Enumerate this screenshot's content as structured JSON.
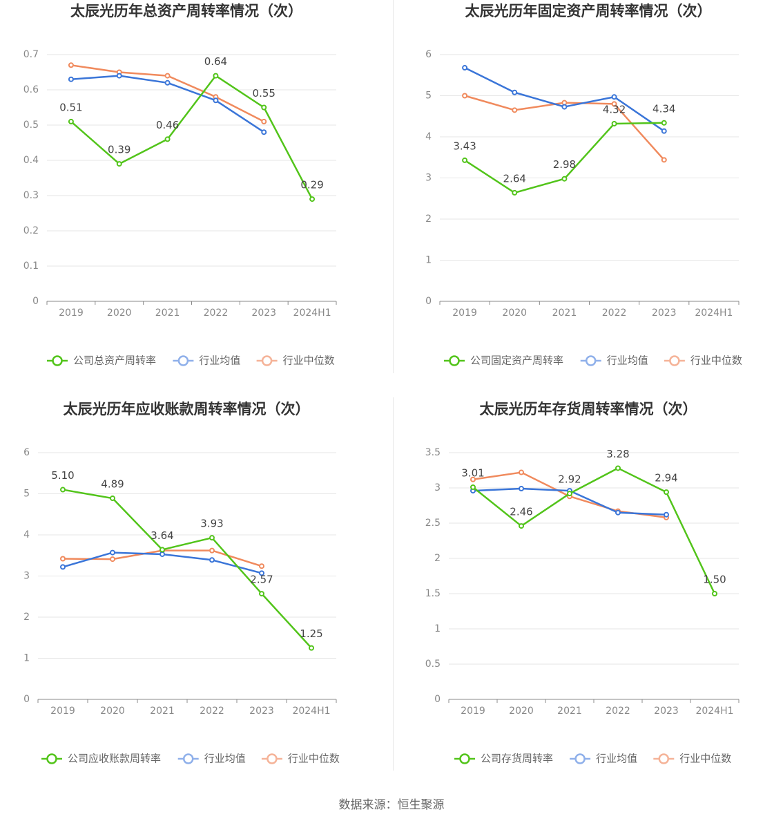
{
  "source_text": "数据来源：恒生聚源",
  "colors": {
    "company": "#52c41a",
    "avg": "#3a75d8",
    "median": "#f08a5d"
  },
  "chart_data": [
    {
      "type": "line",
      "title": "太辰光历年总资产周转率情况（次）",
      "categories": [
        "2019",
        "2020",
        "2021",
        "2022",
        "2023",
        "2024H1"
      ],
      "ylim": [
        0,
        0.7
      ],
      "yticks": [
        "0",
        "0.1",
        "0.2",
        "0.3",
        "0.4",
        "0.5",
        "0.6",
        "0.7"
      ],
      "series": [
        {
          "name": "公司总资产周转率",
          "role": "company",
          "values": [
            0.51,
            0.39,
            0.46,
            0.64,
            0.55,
            0.29
          ],
          "labels": [
            "0.51",
            "0.39",
            "0.46",
            "0.64",
            "0.55",
            "0.29"
          ]
        },
        {
          "name": "行业均值",
          "role": "avg",
          "values": [
            0.63,
            0.64,
            0.62,
            0.57,
            0.48,
            null
          ]
        },
        {
          "name": "行业中位数",
          "role": "median",
          "values": [
            0.67,
            0.65,
            0.64,
            0.58,
            0.51,
            null
          ]
        }
      ]
    },
    {
      "type": "line",
      "title": "太辰光历年固定资产周转率情况（次）",
      "categories": [
        "2019",
        "2020",
        "2021",
        "2022",
        "2023",
        "2024H1"
      ],
      "ylim": [
        0,
        6
      ],
      "yticks": [
        "0",
        "1",
        "2",
        "3",
        "4",
        "5",
        "6"
      ],
      "series": [
        {
          "name": "公司固定资产周转率",
          "role": "company",
          "values": [
            3.43,
            2.64,
            2.98,
            4.32,
            4.34,
            null
          ],
          "labels": [
            "3.43",
            "2.64",
            "2.98",
            "4.32",
            "4.34",
            ""
          ]
        },
        {
          "name": "行业均值",
          "role": "avg",
          "values": [
            5.68,
            5.08,
            4.73,
            4.97,
            4.14,
            null
          ]
        },
        {
          "name": "行业中位数",
          "role": "median",
          "values": [
            5.0,
            4.65,
            4.83,
            4.8,
            3.44,
            null
          ]
        }
      ]
    },
    {
      "type": "line",
      "title": "太辰光历年应收账款周转率情况（次）",
      "categories": [
        "2019",
        "2020",
        "2021",
        "2022",
        "2023",
        "2024H1"
      ],
      "ylim": [
        0,
        6
      ],
      "yticks": [
        "0",
        "1",
        "2",
        "3",
        "4",
        "5",
        "6"
      ],
      "series": [
        {
          "name": "公司应收账款周转率",
          "role": "company",
          "values": [
            5.1,
            4.89,
            3.64,
            3.93,
            2.57,
            1.25
          ],
          "labels": [
            "5.10",
            "4.89",
            "3.64",
            "3.93",
            "2.57",
            "1.25"
          ]
        },
        {
          "name": "行业均值",
          "role": "avg",
          "values": [
            3.22,
            3.57,
            3.53,
            3.39,
            3.07,
            null
          ]
        },
        {
          "name": "行业中位数",
          "role": "median",
          "values": [
            3.42,
            3.41,
            3.62,
            3.62,
            3.24,
            null
          ]
        }
      ]
    },
    {
      "type": "line",
      "title": "太辰光历年存货周转率情况（次）",
      "categories": [
        "2019",
        "2020",
        "2021",
        "2022",
        "2023",
        "2024H1"
      ],
      "ylim": [
        0,
        3.5
      ],
      "yticks": [
        "0",
        "0.5",
        "1",
        "1.5",
        "2",
        "2.5",
        "3",
        "3.5"
      ],
      "series": [
        {
          "name": "公司存货周转率",
          "role": "company",
          "values": [
            3.01,
            2.46,
            2.92,
            3.28,
            2.94,
            1.5
          ],
          "labels": [
            "3.01",
            "2.46",
            "2.92",
            "3.28",
            "2.94",
            "1.50"
          ]
        },
        {
          "name": "行业均值",
          "role": "avg",
          "values": [
            2.96,
            2.99,
            2.96,
            2.65,
            2.62,
            null
          ]
        },
        {
          "name": "行业中位数",
          "role": "median",
          "values": [
            3.12,
            3.22,
            2.88,
            2.67,
            2.58,
            null
          ]
        }
      ]
    }
  ]
}
